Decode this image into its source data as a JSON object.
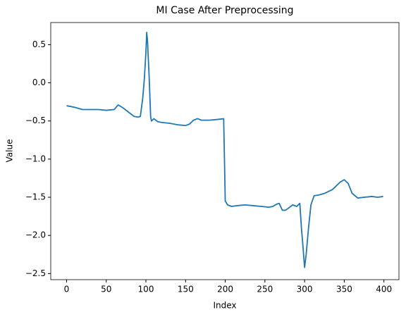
{
  "chart_data": {
    "type": "line",
    "title": "MI Case After Preprocessing",
    "xlabel": "Index",
    "ylabel": "Value",
    "x": [
      0,
      10,
      20,
      30,
      40,
      50,
      60,
      65,
      70,
      75,
      80,
      85,
      90,
      93,
      96,
      98,
      100,
      101,
      102,
      104,
      106,
      107,
      110,
      115,
      120,
      130,
      140,
      150,
      155,
      160,
      165,
      170,
      180,
      190,
      198,
      199,
      200,
      203,
      208,
      215,
      225,
      235,
      245,
      255,
      260,
      265,
      268,
      272,
      276,
      280,
      285,
      290,
      294,
      296,
      298,
      300,
      302,
      305,
      308,
      312,
      318,
      325,
      335,
      345,
      350,
      355,
      360,
      367,
      375,
      385,
      392,
      399
    ],
    "series": [
      {
        "name": "MI Case",
        "color": "#1f77b4",
        "values": [
          -0.3,
          -0.32,
          -0.35,
          -0.35,
          -0.35,
          -0.36,
          -0.35,
          -0.29,
          -0.32,
          -0.36,
          -0.4,
          -0.44,
          -0.45,
          -0.44,
          -0.2,
          0.05,
          0.4,
          0.66,
          0.55,
          0.1,
          -0.45,
          -0.5,
          -0.47,
          -0.51,
          -0.52,
          -0.53,
          -0.55,
          -0.56,
          -0.54,
          -0.49,
          -0.47,
          -0.49,
          -0.49,
          -0.48,
          -0.47,
          -1.0,
          -1.55,
          -1.6,
          -1.62,
          -1.61,
          -1.6,
          -1.61,
          -1.62,
          -1.63,
          -1.62,
          -1.59,
          -1.58,
          -1.67,
          -1.67,
          -1.64,
          -1.6,
          -1.62,
          -1.58,
          -1.9,
          -2.15,
          -2.42,
          -2.25,
          -1.9,
          -1.6,
          -1.48,
          -1.47,
          -1.45,
          -1.4,
          -1.3,
          -1.27,
          -1.32,
          -1.45,
          -1.51,
          -1.5,
          -1.49,
          -1.5,
          -1.49
        ]
      }
    ],
    "xlim": [
      -19.95,
      418.95
    ],
    "ylim": [
      -2.58,
      0.79
    ],
    "xticks": [
      0,
      50,
      100,
      150,
      200,
      250,
      300,
      350,
      400
    ],
    "yticks": [
      0.5,
      {
        "value": 0,
        "label": "0.0"
      },
      {
        "value": -0.5,
        "label": "−0.5"
      },
      {
        "value": -1,
        "label": "−1.0"
      },
      {
        "value": -1.5,
        "label": "−1.5"
      },
      {
        "value": -2,
        "label": "−2.0"
      },
      {
        "value": -2.5,
        "label": "−2.5"
      }
    ]
  }
}
